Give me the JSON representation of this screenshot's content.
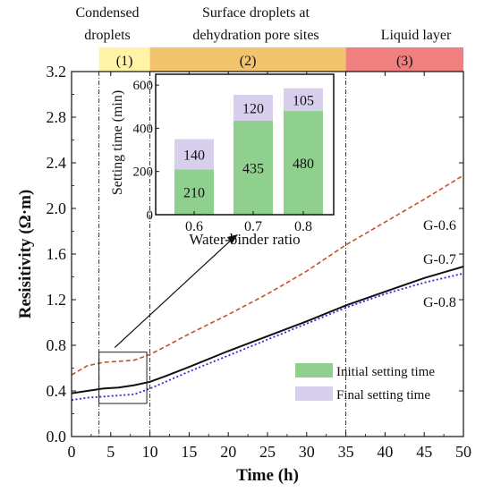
{
  "colors": {
    "phase1": "#fff3a8",
    "phase2": "#f2c46d",
    "phase3": "#f07f7f",
    "line_g06": "#c8502a",
    "line_g07": "#111111",
    "line_g08": "#2a2adc",
    "initial": "#8fd08f",
    "final": "#d8cfec"
  },
  "phases": [
    {
      "number": "(1)",
      "title": "Condensed\ndroplets"
    },
    {
      "number": "(2)",
      "title": "Surface droplets at\ndehydration pore sites"
    },
    {
      "number": "(3)",
      "title": "Liquid layer"
    }
  ],
  "chart_data": [
    {
      "type": "line",
      "xlabel": "Time (h)",
      "ylabel": "Resisitivity (Ω·m)",
      "xlim": [
        0,
        50
      ],
      "ylim": [
        0,
        3.2
      ],
      "x_ticks": [
        "0",
        "5",
        "10",
        "15",
        "20",
        "25",
        "30",
        "35",
        "40",
        "45",
        "50"
      ],
      "y_ticks": [
        "0.0",
        "0.4",
        "0.8",
        "1.2",
        "1.6",
        "2.0",
        "2.4",
        "2.8",
        "3.2"
      ],
      "phase_boundaries": [
        3.5,
        10,
        35
      ],
      "phase_spans": [
        [
          3.5,
          10
        ],
        [
          10,
          35
        ],
        [
          35,
          50
        ]
      ],
      "series": [
        {
          "name": "G-0.6",
          "style": "dashed",
          "x": [
            0,
            2,
            4,
            6,
            8,
            10,
            12,
            15,
            20,
            25,
            30,
            35,
            40,
            45,
            50
          ],
          "y": [
            0.54,
            0.62,
            0.65,
            0.66,
            0.67,
            0.72,
            0.79,
            0.9,
            1.07,
            1.25,
            1.45,
            1.68,
            1.88,
            2.08,
            2.29
          ]
        },
        {
          "name": "G-0.7",
          "style": "solid",
          "x": [
            0,
            2,
            4,
            6,
            8,
            10,
            12,
            15,
            20,
            25,
            30,
            35,
            40,
            45,
            50
          ],
          "y": [
            0.38,
            0.4,
            0.42,
            0.43,
            0.45,
            0.48,
            0.53,
            0.61,
            0.75,
            0.88,
            1.01,
            1.15,
            1.27,
            1.39,
            1.49
          ]
        },
        {
          "name": "G-0.8",
          "style": "dotted",
          "x": [
            0,
            2,
            4,
            6,
            8,
            10,
            12,
            15,
            20,
            25,
            30,
            35,
            40,
            45,
            50
          ],
          "y": [
            0.32,
            0.34,
            0.35,
            0.36,
            0.37,
            0.42,
            0.48,
            0.57,
            0.71,
            0.85,
            0.99,
            1.13,
            1.25,
            1.35,
            1.43
          ]
        }
      ],
      "legend": [
        "Initial setting time",
        "Final setting time"
      ]
    },
    {
      "type": "bar",
      "stacked": true,
      "xlabel": "Water-binder ratio",
      "ylabel": "Setting time (min)",
      "ylim": [
        0,
        650
      ],
      "y_ticks": [
        "0",
        "200",
        "400",
        "600"
      ],
      "categories": [
        "0.6",
        "0.7",
        "0.8"
      ],
      "series": [
        {
          "name": "Initial setting time",
          "values": [
            210,
            435,
            480
          ]
        },
        {
          "name": "Final setting time",
          "values": [
            140,
            120,
            105
          ]
        }
      ]
    }
  ]
}
